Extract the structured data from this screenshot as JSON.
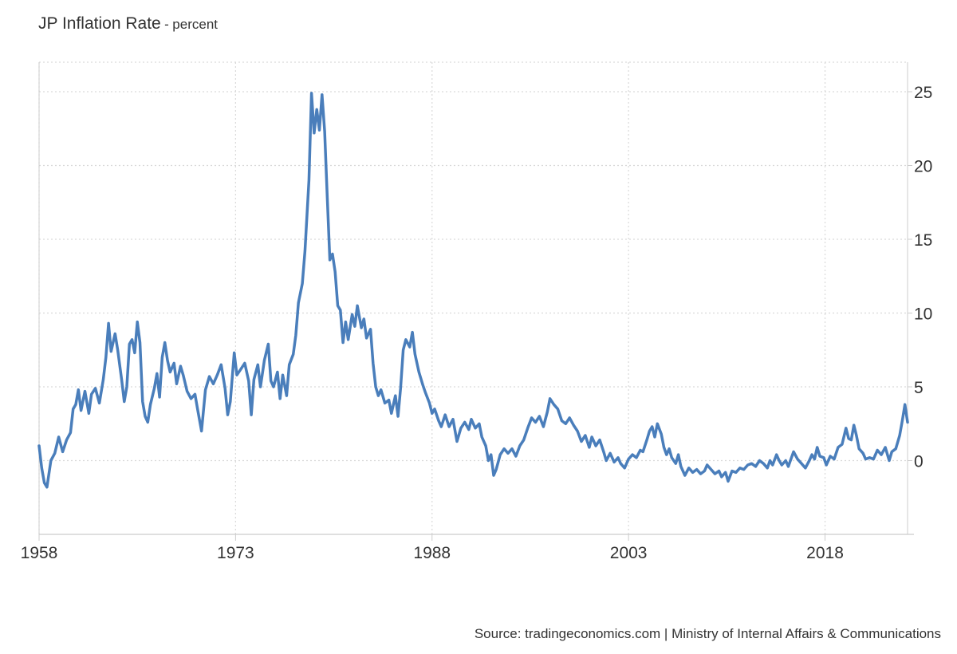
{
  "title": "JP Inflation Rate",
  "title_separator": "-",
  "subtitle": "percent",
  "source": "Source: tradingeconomics.com | Ministry of Internal Affairs & Communications",
  "colors": {
    "line": "#4a7ebb",
    "grid": "#d9d9d9",
    "axis": "#cccccc",
    "text": "#333333"
  },
  "chart_data": {
    "type": "line",
    "xlabel": "",
    "ylabel": "",
    "x_ticks": [
      {
        "label": "1958",
        "value": 1958
      },
      {
        "label": "1973",
        "value": 1973
      },
      {
        "label": "1988",
        "value": 1988
      },
      {
        "label": "2003",
        "value": 2003
      },
      {
        "label": "2018",
        "value": 2018
      }
    ],
    "y_ticks": [
      {
        "label": "0",
        "value": 0
      },
      {
        "label": "5",
        "value": 5
      },
      {
        "label": "10",
        "value": 10
      },
      {
        "label": "15",
        "value": 15
      },
      {
        "label": "20",
        "value": 20
      },
      {
        "label": "25",
        "value": 25
      }
    ],
    "xlim": [
      1958,
      2024.3
    ],
    "ylim": [
      -5,
      27
    ],
    "y_axis_position": "right",
    "grid": true,
    "legend": "none",
    "series": [
      {
        "values": [
          [
            1958.0,
            1.0
          ],
          [
            1958.2,
            -0.5
          ],
          [
            1958.4,
            -1.5
          ],
          [
            1958.6,
            -1.8
          ],
          [
            1958.9,
            0.0
          ],
          [
            1959.2,
            0.5
          ],
          [
            1959.5,
            1.6
          ],
          [
            1959.8,
            0.6
          ],
          [
            1960.1,
            1.4
          ],
          [
            1960.4,
            1.9
          ],
          [
            1960.6,
            3.5
          ],
          [
            1960.8,
            3.8
          ],
          [
            1961.0,
            4.8
          ],
          [
            1961.2,
            3.4
          ],
          [
            1961.5,
            4.7
          ],
          [
            1961.8,
            3.2
          ],
          [
            1962.0,
            4.5
          ],
          [
            1962.3,
            4.9
          ],
          [
            1962.6,
            3.9
          ],
          [
            1962.9,
            5.5
          ],
          [
            1963.1,
            7.0
          ],
          [
            1963.3,
            9.3
          ],
          [
            1963.5,
            7.4
          ],
          [
            1963.8,
            8.6
          ],
          [
            1964.0,
            7.5
          ],
          [
            1964.3,
            5.5
          ],
          [
            1964.5,
            4.0
          ],
          [
            1964.7,
            5.0
          ],
          [
            1964.9,
            7.9
          ],
          [
            1965.1,
            8.2
          ],
          [
            1965.3,
            7.3
          ],
          [
            1965.5,
            9.4
          ],
          [
            1965.7,
            8.0
          ],
          [
            1965.9,
            4.0
          ],
          [
            1966.1,
            3.0
          ],
          [
            1966.3,
            2.6
          ],
          [
            1966.5,
            3.8
          ],
          [
            1966.8,
            4.9
          ],
          [
            1967.0,
            5.9
          ],
          [
            1967.2,
            4.3
          ],
          [
            1967.4,
            7.0
          ],
          [
            1967.6,
            8.0
          ],
          [
            1967.8,
            6.8
          ],
          [
            1968.0,
            6.0
          ],
          [
            1968.3,
            6.6
          ],
          [
            1968.5,
            5.2
          ],
          [
            1968.8,
            6.4
          ],
          [
            1969.0,
            5.8
          ],
          [
            1969.3,
            4.7
          ],
          [
            1969.6,
            4.2
          ],
          [
            1969.9,
            4.5
          ],
          [
            1970.1,
            3.5
          ],
          [
            1970.4,
            2.0
          ],
          [
            1970.7,
            4.8
          ],
          [
            1971.0,
            5.7
          ],
          [
            1971.3,
            5.2
          ],
          [
            1971.6,
            5.8
          ],
          [
            1971.9,
            6.5
          ],
          [
            1972.2,
            4.9
          ],
          [
            1972.4,
            3.1
          ],
          [
            1972.6,
            4.0
          ],
          [
            1972.9,
            7.3
          ],
          [
            1973.1,
            5.8
          ],
          [
            1973.4,
            6.2
          ],
          [
            1973.7,
            6.6
          ],
          [
            1974.0,
            5.4
          ],
          [
            1974.2,
            3.1
          ],
          [
            1974.4,
            5.5
          ],
          [
            1974.7,
            6.5
          ],
          [
            1974.9,
            5.0
          ],
          [
            1975.2,
            6.8
          ],
          [
            1975.5,
            7.9
          ],
          [
            1975.7,
            5.4
          ],
          [
            1975.9,
            5.0
          ],
          [
            1976.2,
            6.0
          ],
          [
            1976.4,
            4.2
          ],
          [
            1976.6,
            5.8
          ],
          [
            1976.9,
            4.4
          ],
          [
            1977.1,
            6.5
          ],
          [
            1977.4,
            7.2
          ],
          [
            1977.6,
            8.5
          ],
          [
            1977.8,
            10.7
          ],
          [
            1978.1,
            12.0
          ],
          [
            1978.3,
            14.2
          ],
          [
            1978.6,
            19.0
          ],
          [
            1978.8,
            24.9
          ],
          [
            1979.0,
            22.2
          ],
          [
            1979.2,
            23.8
          ],
          [
            1979.4,
            22.4
          ],
          [
            1979.6,
            24.8
          ],
          [
            1979.8,
            22.3
          ],
          [
            1980.0,
            17.8
          ],
          [
            1980.2,
            13.6
          ],
          [
            1980.4,
            14.0
          ],
          [
            1980.6,
            12.8
          ],
          [
            1980.8,
            10.5
          ],
          [
            1981.0,
            10.2
          ],
          [
            1981.2,
            8.0
          ],
          [
            1981.4,
            9.4
          ],
          [
            1981.6,
            8.2
          ],
          [
            1981.9,
            9.9
          ],
          [
            1982.1,
            9.1
          ],
          [
            1982.3,
            10.5
          ],
          [
            1982.6,
            9.0
          ],
          [
            1982.8,
            9.6
          ],
          [
            1983.0,
            8.3
          ],
          [
            1983.3,
            8.9
          ],
          [
            1983.5,
            6.6
          ],
          [
            1983.7,
            5.0
          ],
          [
            1983.9,
            4.4
          ],
          [
            1984.1,
            4.8
          ],
          [
            1984.4,
            3.9
          ],
          [
            1984.7,
            4.1
          ],
          [
            1984.9,
            3.2
          ],
          [
            1985.2,
            4.4
          ],
          [
            1985.4,
            3.0
          ],
          [
            1985.6,
            4.9
          ],
          [
            1985.8,
            7.5
          ],
          [
            1986.0,
            8.2
          ],
          [
            1986.3,
            7.7
          ],
          [
            1986.5,
            8.7
          ],
          [
            1986.7,
            7.2
          ],
          [
            1987.0,
            6.0
          ],
          [
            1987.3,
            5.1
          ],
          [
            1987.5,
            4.6
          ],
          [
            1987.8,
            3.9
          ],
          [
            1988.0,
            3.2
          ],
          [
            1988.2,
            3.5
          ],
          [
            1988.5,
            2.7
          ],
          [
            1988.7,
            2.3
          ],
          [
            1989.0,
            3.1
          ],
          [
            1989.3,
            2.3
          ],
          [
            1989.6,
            2.8
          ],
          [
            1989.9,
            1.3
          ],
          [
            1990.2,
            2.2
          ],
          [
            1990.5,
            2.6
          ],
          [
            1990.8,
            2.1
          ],
          [
            1991.0,
            2.8
          ],
          [
            1991.3,
            2.2
          ],
          [
            1991.6,
            2.5
          ],
          [
            1991.8,
            1.6
          ],
          [
            1992.1,
            1.0
          ],
          [
            1992.3,
            0.0
          ],
          [
            1992.5,
            0.4
          ],
          [
            1992.7,
            -1.0
          ],
          [
            1992.9,
            -0.6
          ],
          [
            1993.2,
            0.4
          ],
          [
            1993.5,
            0.8
          ],
          [
            1993.8,
            0.5
          ],
          [
            1994.1,
            0.8
          ],
          [
            1994.4,
            0.3
          ],
          [
            1994.7,
            1.0
          ],
          [
            1995.0,
            1.4
          ],
          [
            1995.3,
            2.2
          ],
          [
            1995.6,
            2.9
          ],
          [
            1995.9,
            2.6
          ],
          [
            1996.2,
            3.0
          ],
          [
            1996.5,
            2.3
          ],
          [
            1996.8,
            3.3
          ],
          [
            1997.0,
            4.2
          ],
          [
            1997.3,
            3.8
          ],
          [
            1997.6,
            3.5
          ],
          [
            1997.9,
            2.7
          ],
          [
            1998.2,
            2.5
          ],
          [
            1998.5,
            2.9
          ],
          [
            1998.8,
            2.4
          ],
          [
            1999.1,
            2.0
          ],
          [
            1999.4,
            1.3
          ],
          [
            1999.7,
            1.7
          ],
          [
            2000.0,
            0.9
          ],
          [
            2000.2,
            1.6
          ],
          [
            2000.5,
            1.0
          ],
          [
            2000.8,
            1.4
          ],
          [
            2001.1,
            0.6
          ],
          [
            2001.3,
            0.0
          ],
          [
            2001.6,
            0.5
          ],
          [
            2001.9,
            -0.1
          ],
          [
            2002.2,
            0.2
          ],
          [
            2002.4,
            -0.2
          ],
          [
            2002.7,
            -0.5
          ],
          [
            2003.0,
            0.1
          ],
          [
            2003.3,
            0.4
          ],
          [
            2003.6,
            0.2
          ],
          [
            2003.9,
            0.7
          ],
          [
            2004.1,
            0.6
          ],
          [
            2004.4,
            1.4
          ],
          [
            2004.6,
            2.0
          ],
          [
            2004.8,
            2.3
          ],
          [
            2005.0,
            1.6
          ],
          [
            2005.2,
            2.5
          ],
          [
            2005.5,
            1.8
          ],
          [
            2005.7,
            0.9
          ],
          [
            2005.9,
            0.4
          ],
          [
            2006.1,
            0.8
          ],
          [
            2006.3,
            0.2
          ],
          [
            2006.6,
            -0.2
          ],
          [
            2006.8,
            0.4
          ],
          [
            2007.0,
            -0.4
          ],
          [
            2007.3,
            -1.0
          ],
          [
            2007.6,
            -0.5
          ],
          [
            2007.9,
            -0.8
          ],
          [
            2008.2,
            -0.6
          ],
          [
            2008.5,
            -0.9
          ],
          [
            2008.8,
            -0.7
          ],
          [
            2009.0,
            -0.3
          ],
          [
            2009.3,
            -0.6
          ],
          [
            2009.6,
            -0.9
          ],
          [
            2009.9,
            -0.7
          ],
          [
            2010.1,
            -1.1
          ],
          [
            2010.4,
            -0.8
          ],
          [
            2010.6,
            -1.4
          ],
          [
            2010.9,
            -0.7
          ],
          [
            2011.2,
            -0.8
          ],
          [
            2011.5,
            -0.5
          ],
          [
            2011.8,
            -0.6
          ],
          [
            2012.1,
            -0.3
          ],
          [
            2012.4,
            -0.2
          ],
          [
            2012.7,
            -0.4
          ],
          [
            2013.0,
            0.0
          ],
          [
            2013.3,
            -0.2
          ],
          [
            2013.6,
            -0.5
          ],
          [
            2013.8,
            0.0
          ],
          [
            2014.0,
            -0.3
          ],
          [
            2014.3,
            0.4
          ],
          [
            2014.5,
            0.0
          ],
          [
            2014.7,
            -0.3
          ],
          [
            2015.0,
            0.0
          ],
          [
            2015.2,
            -0.4
          ],
          [
            2015.4,
            0.1
          ],
          [
            2015.6,
            0.6
          ],
          [
            2015.9,
            0.1
          ],
          [
            2016.2,
            -0.2
          ],
          [
            2016.5,
            -0.5
          ],
          [
            2016.8,
            0.0
          ],
          [
            2017.0,
            0.4
          ],
          [
            2017.2,
            0.1
          ],
          [
            2017.4,
            0.9
          ],
          [
            2017.6,
            0.3
          ],
          [
            2017.9,
            0.2
          ],
          [
            2018.1,
            -0.3
          ],
          [
            2018.4,
            0.3
          ],
          [
            2018.7,
            0.1
          ],
          [
            2019.0,
            0.9
          ],
          [
            2019.3,
            1.1
          ],
          [
            2019.6,
            2.2
          ],
          [
            2019.8,
            1.5
          ],
          [
            2020.0,
            1.4
          ],
          [
            2020.2,
            2.4
          ],
          [
            2020.4,
            1.7
          ],
          [
            2020.6,
            0.8
          ],
          [
            2020.9,
            0.5
          ],
          [
            2021.1,
            0.1
          ],
          [
            2021.4,
            0.2
          ],
          [
            2021.7,
            0.1
          ],
          [
            2022.0,
            0.7
          ],
          [
            2022.3,
            0.4
          ],
          [
            2022.6,
            0.9
          ],
          [
            2022.9,
            0.0
          ],
          [
            2023.1,
            0.6
          ],
          [
            2023.4,
            0.8
          ],
          [
            2023.7,
            1.7
          ],
          [
            2023.9,
            2.7
          ],
          [
            2024.1,
            3.8
          ],
          [
            2024.3,
            2.6
          ]
        ]
      }
    ]
  }
}
